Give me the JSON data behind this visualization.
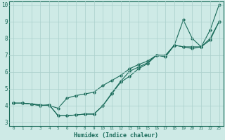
{
  "xlabel": "Humidex (Indice chaleur)",
  "bg_color": "#ceeae6",
  "grid_color": "#aacfcb",
  "line_color": "#1a6b5a",
  "xlim": [
    -0.5,
    23.5
  ],
  "ylim": [
    2.8,
    10.2
  ],
  "xtick_labels": [
    "0",
    "1",
    "2",
    "3",
    "4",
    "5",
    "6",
    "7",
    "8",
    "9",
    "10",
    "11",
    "12",
    "13",
    "14",
    "15",
    "16",
    "17",
    "18",
    "19",
    "20",
    "21",
    "22",
    "23"
  ],
  "ytick_labels": [
    "3",
    "4",
    "5",
    "6",
    "7",
    "8",
    "9",
    "10"
  ],
  "ytick_vals": [
    3,
    4,
    5,
    6,
    7,
    8,
    9,
    10
  ],
  "series": [
    {
      "x": [
        0,
        1,
        2,
        3,
        4,
        5,
        6,
        7,
        8,
        9,
        10,
        11,
        12,
        13,
        14,
        15,
        16,
        17,
        18,
        19,
        20,
        21,
        22,
        23
      ],
      "y": [
        4.15,
        4.15,
        4.1,
        4.0,
        4.05,
        3.4,
        3.4,
        3.45,
        3.5,
        3.5,
        4.0,
        4.7,
        5.4,
        5.75,
        6.2,
        6.5,
        7.0,
        6.9,
        7.6,
        9.1,
        8.0,
        7.5,
        8.5,
        10.0
      ]
    },
    {
      "x": [
        0,
        1,
        2,
        3,
        4,
        5,
        6,
        7,
        8,
        9,
        10,
        11,
        12,
        13,
        14,
        15,
        16,
        17,
        18,
        19,
        20,
        21,
        22,
        23
      ],
      "y": [
        4.15,
        4.15,
        4.1,
        4.0,
        4.05,
        3.4,
        3.4,
        3.45,
        3.5,
        3.5,
        4.0,
        4.75,
        5.45,
        6.05,
        6.3,
        6.55,
        7.0,
        6.95,
        7.6,
        7.5,
        7.5,
        7.5,
        8.0,
        9.0
      ]
    },
    {
      "x": [
        0,
        1,
        2,
        3,
        4,
        5,
        6,
        7,
        8,
        9,
        10,
        11,
        12,
        13,
        14,
        15,
        16,
        17,
        18,
        19,
        20,
        21,
        22,
        23
      ],
      "y": [
        4.15,
        4.15,
        4.1,
        4.05,
        4.0,
        3.85,
        4.45,
        4.6,
        4.7,
        4.8,
        5.2,
        5.5,
        5.8,
        6.2,
        6.45,
        6.65,
        7.0,
        7.0,
        7.6,
        7.5,
        7.4,
        7.5,
        7.9,
        9.0
      ]
    }
  ]
}
